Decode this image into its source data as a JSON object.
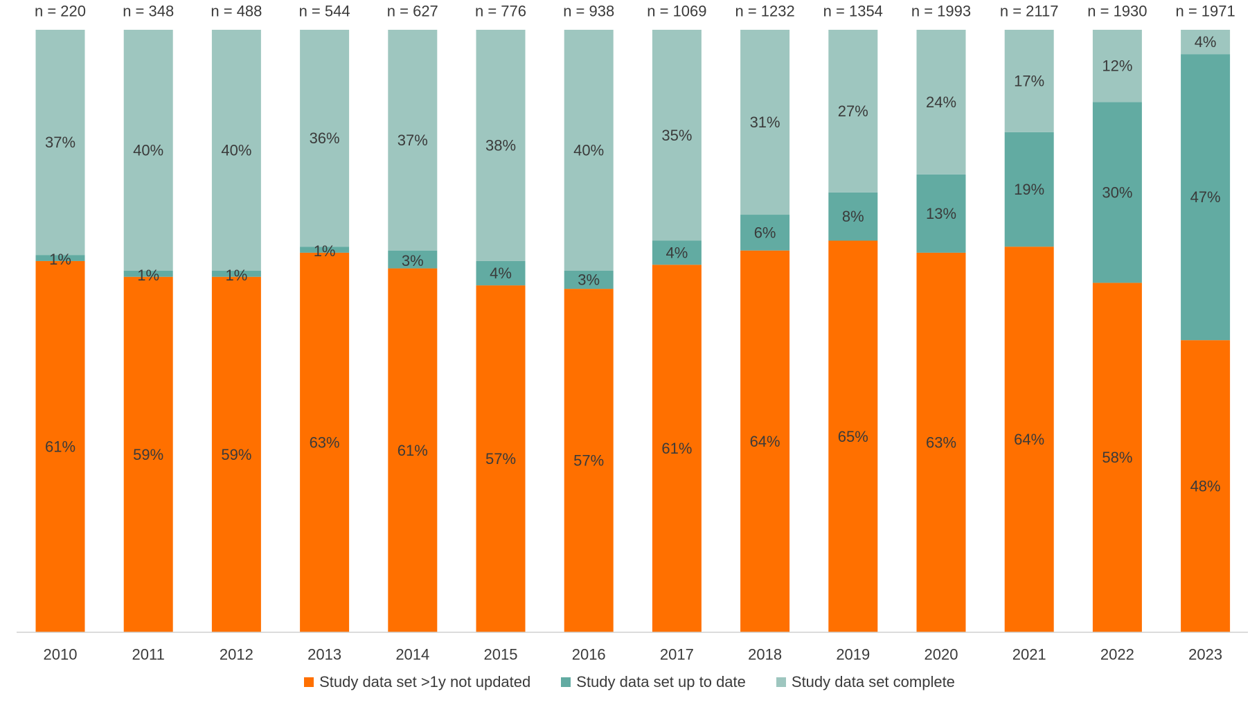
{
  "chart_data": {
    "type": "bar",
    "stacked": true,
    "percent_stacked": true,
    "categories": [
      "2010",
      "2011",
      "2012",
      "2013",
      "2014",
      "2015",
      "2016",
      "2017",
      "2018",
      "2019",
      "2020",
      "2021",
      "2022",
      "2023"
    ],
    "n_labels": [
      "n = 220",
      "n = 348",
      "n = 488",
      "n = 544",
      "n = 627",
      "n = 776",
      "n = 938",
      "n = 1069",
      "n = 1232",
      "n = 1354",
      "n = 1993",
      "n = 2117",
      "n = 1930",
      "n = 1971"
    ],
    "series": [
      {
        "name": "Study data set >1y not updated",
        "color": "#ff7000",
        "values": [
          61,
          59,
          59,
          63,
          61,
          57,
          57,
          61,
          64,
          65,
          63,
          64,
          58,
          48
        ],
        "labels": [
          "61%",
          "59%",
          "59%",
          "63%",
          "61%",
          "57%",
          "57%",
          "61%",
          "64%",
          "65%",
          "63%",
          "64%",
          "58%",
          "48%"
        ]
      },
      {
        "name": "Study data set up to date",
        "color": "#62aba2",
        "values": [
          1,
          1,
          1,
          1,
          3,
          4,
          3,
          4,
          6,
          8,
          13,
          19,
          30,
          47
        ],
        "labels": [
          "1%",
          "1%",
          "1%",
          "1%",
          "3%",
          "4%",
          "3%",
          "4%",
          "6%",
          "8%",
          "13%",
          "19%",
          "30%",
          "47%"
        ]
      },
      {
        "name": "Study data set complete",
        "color": "#9ec6bf",
        "values": [
          37,
          40,
          40,
          36,
          37,
          38,
          40,
          35,
          31,
          27,
          24,
          17,
          12,
          4
        ],
        "labels": [
          "37%",
          "40%",
          "40%",
          "36%",
          "37%",
          "38%",
          "40%",
          "35%",
          "31%",
          "27%",
          "24%",
          "17%",
          "12%",
          "4%"
        ]
      }
    ],
    "title": "",
    "xlabel": "",
    "ylabel": "",
    "ylim": [
      0,
      100
    ],
    "grid": false,
    "legend_position": "bottom"
  }
}
